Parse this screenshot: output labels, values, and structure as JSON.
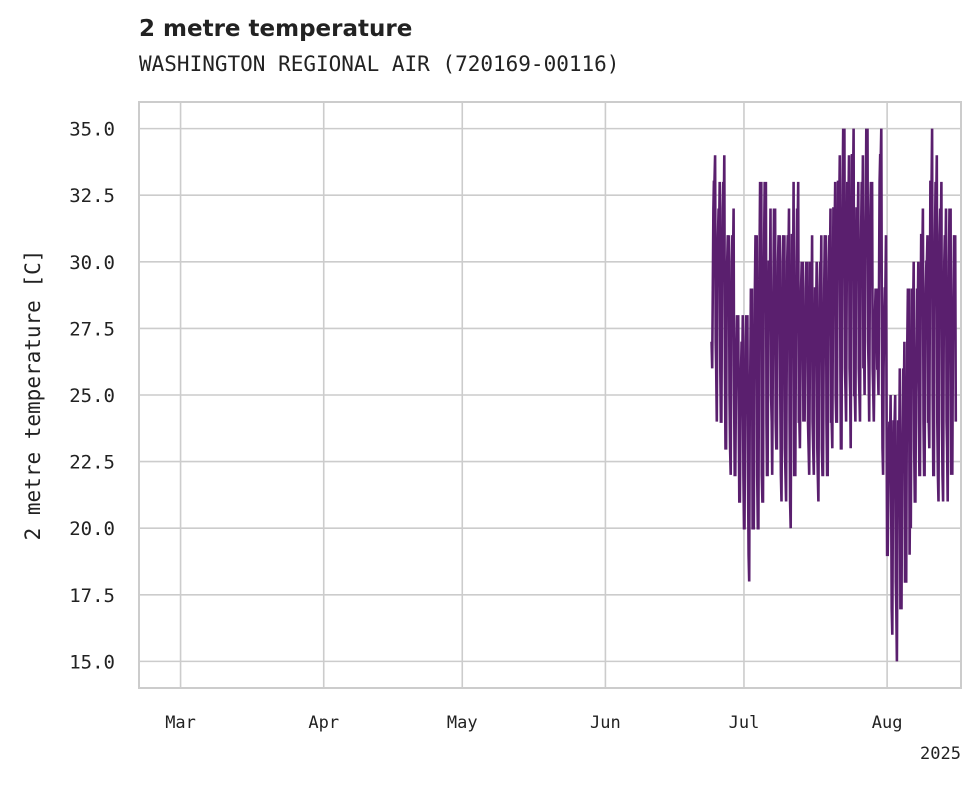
{
  "title": "2 metre temperature",
  "subtitle": "WASHINGTON REGIONAL AIR (720169-00116)",
  "chart_data": {
    "type": "line",
    "ylabel": "2 metre temperature [C]",
    "xlabel": "",
    "ylim": [
      14.0,
      36.0
    ],
    "xlim": [
      "2025-02-20",
      "2025-08-17"
    ],
    "year_label": "2025",
    "y_ticks": [
      "15.0",
      "17.5",
      "20.0",
      "22.5",
      "25.0",
      "27.5",
      "30.0",
      "32.5",
      "35.0"
    ],
    "x_ticks": [
      {
        "date": "2025-03-01",
        "label": "Mar"
      },
      {
        "date": "2025-04-01",
        "label": "Apr"
      },
      {
        "date": "2025-05-01",
        "label": "May"
      },
      {
        "date": "2025-06-01",
        "label": "Jun"
      },
      {
        "date": "2025-07-01",
        "label": "Jul"
      },
      {
        "date": "2025-08-01",
        "label": "Aug"
      }
    ],
    "grid": true,
    "color": "#5a1f6e",
    "series": [
      {
        "x": [
          "2025-06-24",
          "2025-06-25",
          "2025-06-26",
          "2025-06-27",
          "2025-06-28",
          "2025-06-29",
          "2025-06-30",
          "2025-07-01",
          "2025-07-02",
          "2025-07-03",
          "2025-07-04",
          "2025-07-05",
          "2025-07-06",
          "2025-07-07",
          "2025-07-08",
          "2025-07-09",
          "2025-07-10",
          "2025-07-11",
          "2025-07-12",
          "2025-07-13",
          "2025-07-14",
          "2025-07-15",
          "2025-07-16",
          "2025-07-17",
          "2025-07-18",
          "2025-07-19",
          "2025-07-20",
          "2025-07-21",
          "2025-07-22",
          "2025-07-23",
          "2025-07-24",
          "2025-07-25",
          "2025-07-26",
          "2025-07-27",
          "2025-07-28",
          "2025-07-29",
          "2025-07-30",
          "2025-07-31",
          "2025-08-01",
          "2025-08-02",
          "2025-08-03",
          "2025-08-04",
          "2025-08-05",
          "2025-08-06",
          "2025-08-07",
          "2025-08-08",
          "2025-08-09",
          "2025-08-10",
          "2025-08-11",
          "2025-08-12",
          "2025-08-13",
          "2025-08-14",
          "2025-08-15"
        ],
        "min": [
          26,
          24,
          24,
          23,
          22,
          22,
          21,
          20,
          18,
          20,
          20,
          21,
          22,
          22,
          23,
          21,
          21,
          20,
          22,
          23,
          24,
          22,
          22,
          21,
          22,
          22,
          23,
          24,
          23,
          24,
          23,
          24,
          24,
          25,
          24,
          24,
          25,
          22,
          19,
          16,
          15,
          17,
          18,
          20,
          21,
          22,
          22,
          23,
          22,
          21,
          21,
          21,
          22
        ],
        "max": [
          34,
          33,
          34,
          31,
          32,
          28,
          28,
          28,
          29,
          31,
          33,
          33,
          32,
          32,
          31,
          31,
          32,
          33,
          33,
          30,
          30,
          31,
          30,
          31,
          31,
          32,
          33,
          34,
          35,
          34,
          35,
          33,
          34,
          35,
          33,
          29,
          35,
          31,
          25,
          25,
          26,
          27,
          29,
          30,
          30,
          32,
          31,
          35,
          34,
          33,
          32,
          32,
          31
        ]
      }
    ]
  }
}
